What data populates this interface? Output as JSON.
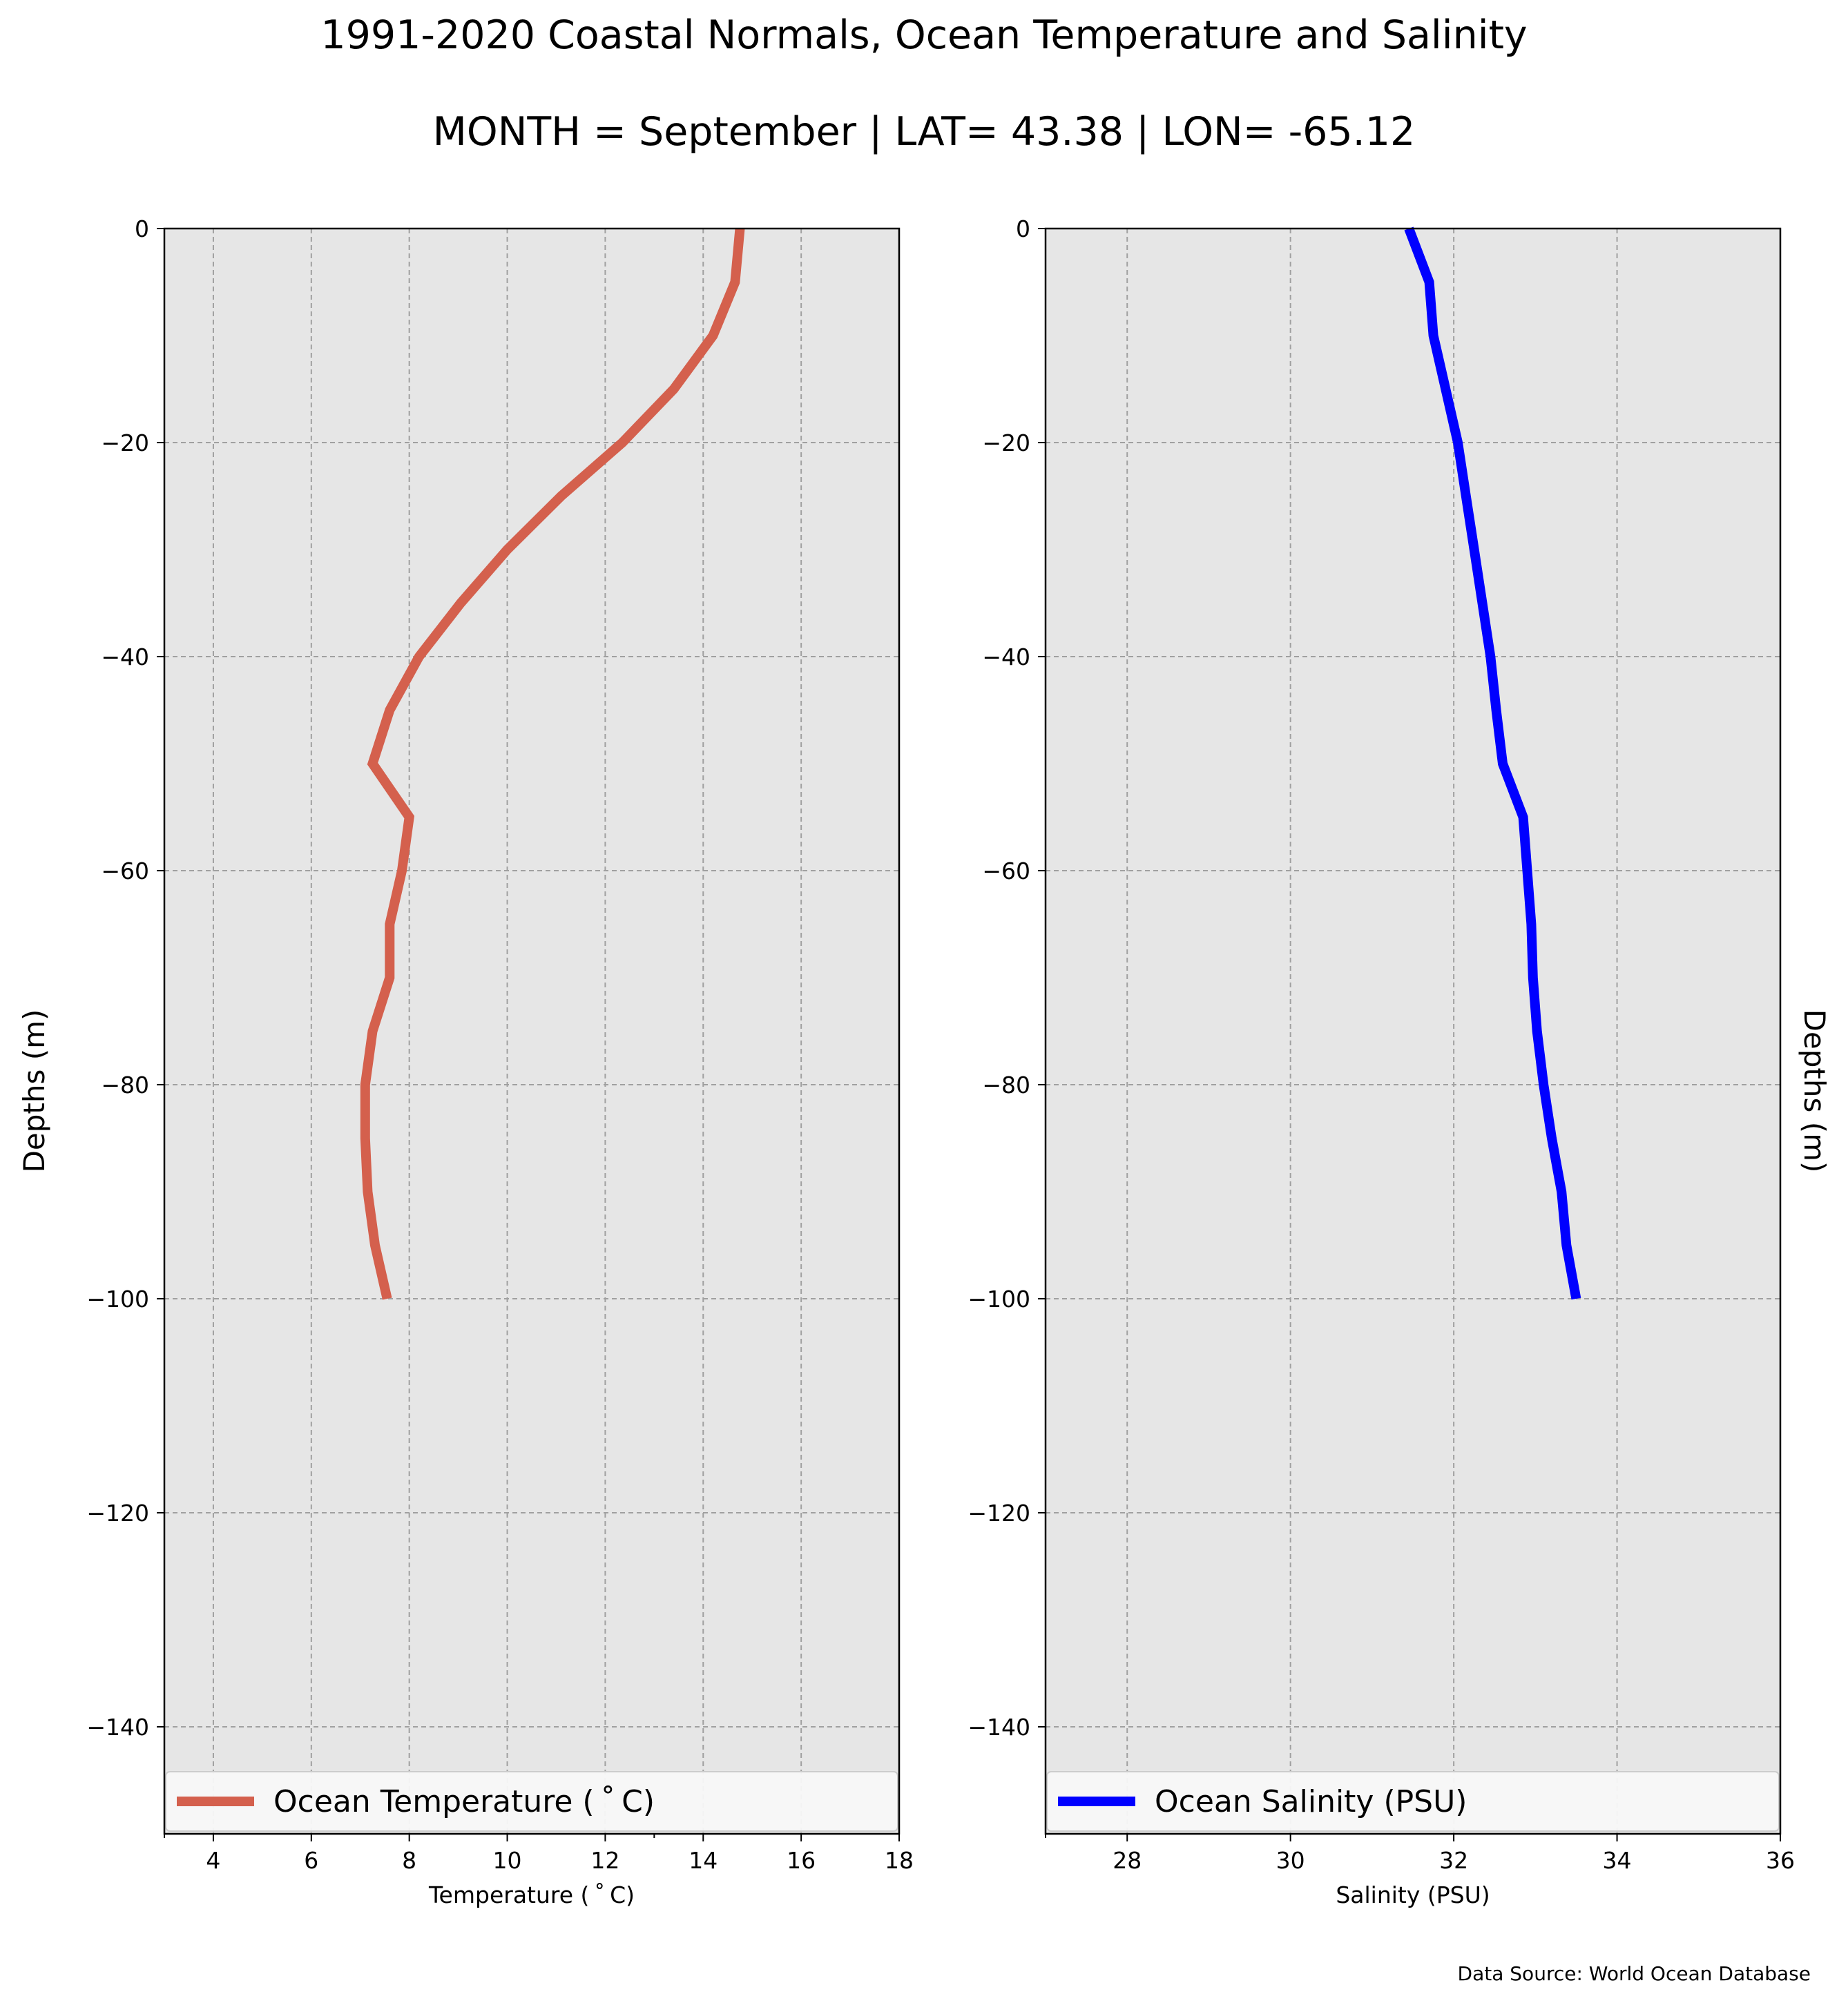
{
  "figure": {
    "title": "1991-2020 Coastal Normals, Ocean Temperature and Salinity",
    "subtitle": "MONTH = September | LAT= 43.38 | LON= -65.12",
    "source": "Data Source: World Ocean Database"
  },
  "chart_data": [
    {
      "type": "line",
      "xlabel": "Temperature ($^\\circ$C)",
      "xlabel_display": "Temperature ( ˚ C)",
      "ylabel": "Depths (m)",
      "xlim": [
        3,
        18
      ],
      "ylim": [
        -150,
        0
      ],
      "xticks": [
        4,
        6,
        8,
        10,
        12,
        14,
        16,
        18
      ],
      "xtick_labels": [
        "4",
        "6",
        "8",
        "10",
        "12",
        "14",
        "16",
        "18"
      ],
      "minor_xticks": [
        3,
        13
      ],
      "yticks": [
        0,
        -20,
        -40,
        -60,
        -80,
        -100,
        -120,
        -140
      ],
      "ytick_labels": [
        "0",
        "−20",
        "−40",
        "−60",
        "−80",
        "−100",
        "−120",
        "−140"
      ],
      "grid": true,
      "legend_position": "bottom",
      "color": "#d4604d",
      "background": "#e6e6e6",
      "series": [
        {
          "name": "Ocean Temperature ( ˚ C)",
          "x": [
            14.75,
            14.65,
            14.2,
            13.4,
            12.35,
            11.1,
            10.0,
            9.05,
            8.2,
            7.6,
            7.25,
            8.0,
            7.85,
            7.6,
            7.6,
            7.25,
            7.1,
            7.1,
            7.15,
            7.3,
            7.55
          ],
          "y": [
            0,
            -5,
            -10,
            -15,
            -20,
            -25,
            -30,
            -35,
            -40,
            -45,
            -50,
            -55,
            -60,
            -65,
            -70,
            -75,
            -80,
            -85,
            -90,
            -95,
            -100
          ]
        }
      ]
    },
    {
      "type": "line",
      "xlabel": "Salinity (PSU)",
      "ylabel": "Depths (m)",
      "xlim": [
        27,
        36
      ],
      "ylim": [
        -150,
        0
      ],
      "xticks": [
        28,
        30,
        32,
        34,
        36
      ],
      "xtick_labels": [
        "28",
        "30",
        "32",
        "34",
        "36"
      ],
      "minor_xticks": [
        27
      ],
      "yticks": [
        0,
        -20,
        -40,
        -60,
        -80,
        -100,
        -120,
        -140
      ],
      "ytick_labels": [
        "0",
        "−20",
        "−40",
        "−60",
        "−80",
        "−100",
        "−120",
        "−140"
      ],
      "grid": true,
      "legend_position": "bottom",
      "color": "#0000ff",
      "background": "#e6e6e6",
      "series": [
        {
          "name": "Ocean Salinity (PSU)",
          "x": [
            31.45,
            31.7,
            31.75,
            31.9,
            32.05,
            32.15,
            32.25,
            32.35,
            32.45,
            32.52,
            32.6,
            32.85,
            32.9,
            32.95,
            32.97,
            33.02,
            33.1,
            33.2,
            33.32,
            33.38,
            33.5
          ],
          "y": [
            0,
            -5,
            -10,
            -15,
            -20,
            -25,
            -30,
            -35,
            -40,
            -45,
            -50,
            -55,
            -60,
            -65,
            -70,
            -75,
            -80,
            -85,
            -90,
            -95,
            -100
          ]
        }
      ]
    }
  ]
}
